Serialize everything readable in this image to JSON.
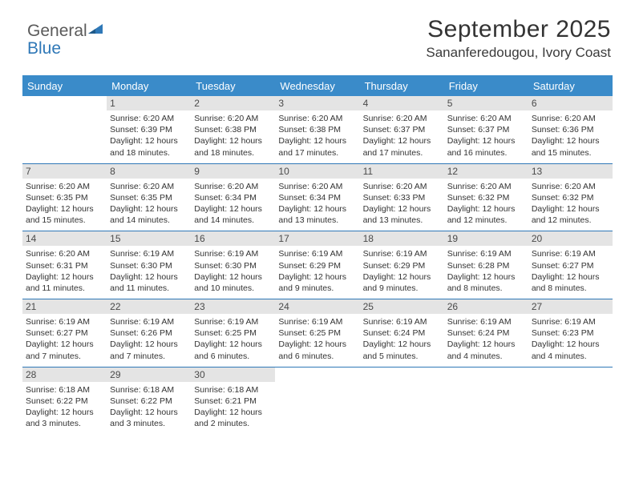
{
  "logo": {
    "text_a": "General",
    "text_b": "Blue",
    "mark_color": "#2f78b7"
  },
  "header": {
    "month_year": "September 2025",
    "location": "Sananferedougou, Ivory Coast"
  },
  "calendar": {
    "header_bg": "#3a8bc9",
    "header_fg": "#ffffff",
    "row_border_color": "#2f78b7",
    "daynum_bg": "#e4e4e4",
    "daynames": [
      "Sunday",
      "Monday",
      "Tuesday",
      "Wednesday",
      "Thursday",
      "Friday",
      "Saturday"
    ],
    "rows": [
      [
        {
          "blank": true
        },
        {
          "day": "1",
          "sunrise": "Sunrise: 6:20 AM",
          "sunset": "Sunset: 6:39 PM",
          "day1": "Daylight: 12 hours",
          "day2": "and 18 minutes."
        },
        {
          "day": "2",
          "sunrise": "Sunrise: 6:20 AM",
          "sunset": "Sunset: 6:38 PM",
          "day1": "Daylight: 12 hours",
          "day2": "and 18 minutes."
        },
        {
          "day": "3",
          "sunrise": "Sunrise: 6:20 AM",
          "sunset": "Sunset: 6:38 PM",
          "day1": "Daylight: 12 hours",
          "day2": "and 17 minutes."
        },
        {
          "day": "4",
          "sunrise": "Sunrise: 6:20 AM",
          "sunset": "Sunset: 6:37 PM",
          "day1": "Daylight: 12 hours",
          "day2": "and 17 minutes."
        },
        {
          "day": "5",
          "sunrise": "Sunrise: 6:20 AM",
          "sunset": "Sunset: 6:37 PM",
          "day1": "Daylight: 12 hours",
          "day2": "and 16 minutes."
        },
        {
          "day": "6",
          "sunrise": "Sunrise: 6:20 AM",
          "sunset": "Sunset: 6:36 PM",
          "day1": "Daylight: 12 hours",
          "day2": "and 15 minutes."
        }
      ],
      [
        {
          "day": "7",
          "sunrise": "Sunrise: 6:20 AM",
          "sunset": "Sunset: 6:35 PM",
          "day1": "Daylight: 12 hours",
          "day2": "and 15 minutes."
        },
        {
          "day": "8",
          "sunrise": "Sunrise: 6:20 AM",
          "sunset": "Sunset: 6:35 PM",
          "day1": "Daylight: 12 hours",
          "day2": "and 14 minutes."
        },
        {
          "day": "9",
          "sunrise": "Sunrise: 6:20 AM",
          "sunset": "Sunset: 6:34 PM",
          "day1": "Daylight: 12 hours",
          "day2": "and 14 minutes."
        },
        {
          "day": "10",
          "sunrise": "Sunrise: 6:20 AM",
          "sunset": "Sunset: 6:34 PM",
          "day1": "Daylight: 12 hours",
          "day2": "and 13 minutes."
        },
        {
          "day": "11",
          "sunrise": "Sunrise: 6:20 AM",
          "sunset": "Sunset: 6:33 PM",
          "day1": "Daylight: 12 hours",
          "day2": "and 13 minutes."
        },
        {
          "day": "12",
          "sunrise": "Sunrise: 6:20 AM",
          "sunset": "Sunset: 6:32 PM",
          "day1": "Daylight: 12 hours",
          "day2": "and 12 minutes."
        },
        {
          "day": "13",
          "sunrise": "Sunrise: 6:20 AM",
          "sunset": "Sunset: 6:32 PM",
          "day1": "Daylight: 12 hours",
          "day2": "and 12 minutes."
        }
      ],
      [
        {
          "day": "14",
          "sunrise": "Sunrise: 6:20 AM",
          "sunset": "Sunset: 6:31 PM",
          "day1": "Daylight: 12 hours",
          "day2": "and 11 minutes."
        },
        {
          "day": "15",
          "sunrise": "Sunrise: 6:19 AM",
          "sunset": "Sunset: 6:30 PM",
          "day1": "Daylight: 12 hours",
          "day2": "and 11 minutes."
        },
        {
          "day": "16",
          "sunrise": "Sunrise: 6:19 AM",
          "sunset": "Sunset: 6:30 PM",
          "day1": "Daylight: 12 hours",
          "day2": "and 10 minutes."
        },
        {
          "day": "17",
          "sunrise": "Sunrise: 6:19 AM",
          "sunset": "Sunset: 6:29 PM",
          "day1": "Daylight: 12 hours",
          "day2": "and 9 minutes."
        },
        {
          "day": "18",
          "sunrise": "Sunrise: 6:19 AM",
          "sunset": "Sunset: 6:29 PM",
          "day1": "Daylight: 12 hours",
          "day2": "and 9 minutes."
        },
        {
          "day": "19",
          "sunrise": "Sunrise: 6:19 AM",
          "sunset": "Sunset: 6:28 PM",
          "day1": "Daylight: 12 hours",
          "day2": "and 8 minutes."
        },
        {
          "day": "20",
          "sunrise": "Sunrise: 6:19 AM",
          "sunset": "Sunset: 6:27 PM",
          "day1": "Daylight: 12 hours",
          "day2": "and 8 minutes."
        }
      ],
      [
        {
          "day": "21",
          "sunrise": "Sunrise: 6:19 AM",
          "sunset": "Sunset: 6:27 PM",
          "day1": "Daylight: 12 hours",
          "day2": "and 7 minutes."
        },
        {
          "day": "22",
          "sunrise": "Sunrise: 6:19 AM",
          "sunset": "Sunset: 6:26 PM",
          "day1": "Daylight: 12 hours",
          "day2": "and 7 minutes."
        },
        {
          "day": "23",
          "sunrise": "Sunrise: 6:19 AM",
          "sunset": "Sunset: 6:25 PM",
          "day1": "Daylight: 12 hours",
          "day2": "and 6 minutes."
        },
        {
          "day": "24",
          "sunrise": "Sunrise: 6:19 AM",
          "sunset": "Sunset: 6:25 PM",
          "day1": "Daylight: 12 hours",
          "day2": "and 6 minutes."
        },
        {
          "day": "25",
          "sunrise": "Sunrise: 6:19 AM",
          "sunset": "Sunset: 6:24 PM",
          "day1": "Daylight: 12 hours",
          "day2": "and 5 minutes."
        },
        {
          "day": "26",
          "sunrise": "Sunrise: 6:19 AM",
          "sunset": "Sunset: 6:24 PM",
          "day1": "Daylight: 12 hours",
          "day2": "and 4 minutes."
        },
        {
          "day": "27",
          "sunrise": "Sunrise: 6:19 AM",
          "sunset": "Sunset: 6:23 PM",
          "day1": "Daylight: 12 hours",
          "day2": "and 4 minutes."
        }
      ],
      [
        {
          "day": "28",
          "sunrise": "Sunrise: 6:18 AM",
          "sunset": "Sunset: 6:22 PM",
          "day1": "Daylight: 12 hours",
          "day2": "and 3 minutes."
        },
        {
          "day": "29",
          "sunrise": "Sunrise: 6:18 AM",
          "sunset": "Sunset: 6:22 PM",
          "day1": "Daylight: 12 hours",
          "day2": "and 3 minutes."
        },
        {
          "day": "30",
          "sunrise": "Sunrise: 6:18 AM",
          "sunset": "Sunset: 6:21 PM",
          "day1": "Daylight: 12 hours",
          "day2": "and 2 minutes."
        },
        {
          "blank": true
        },
        {
          "blank": true
        },
        {
          "blank": true
        },
        {
          "blank": true
        }
      ]
    ]
  }
}
